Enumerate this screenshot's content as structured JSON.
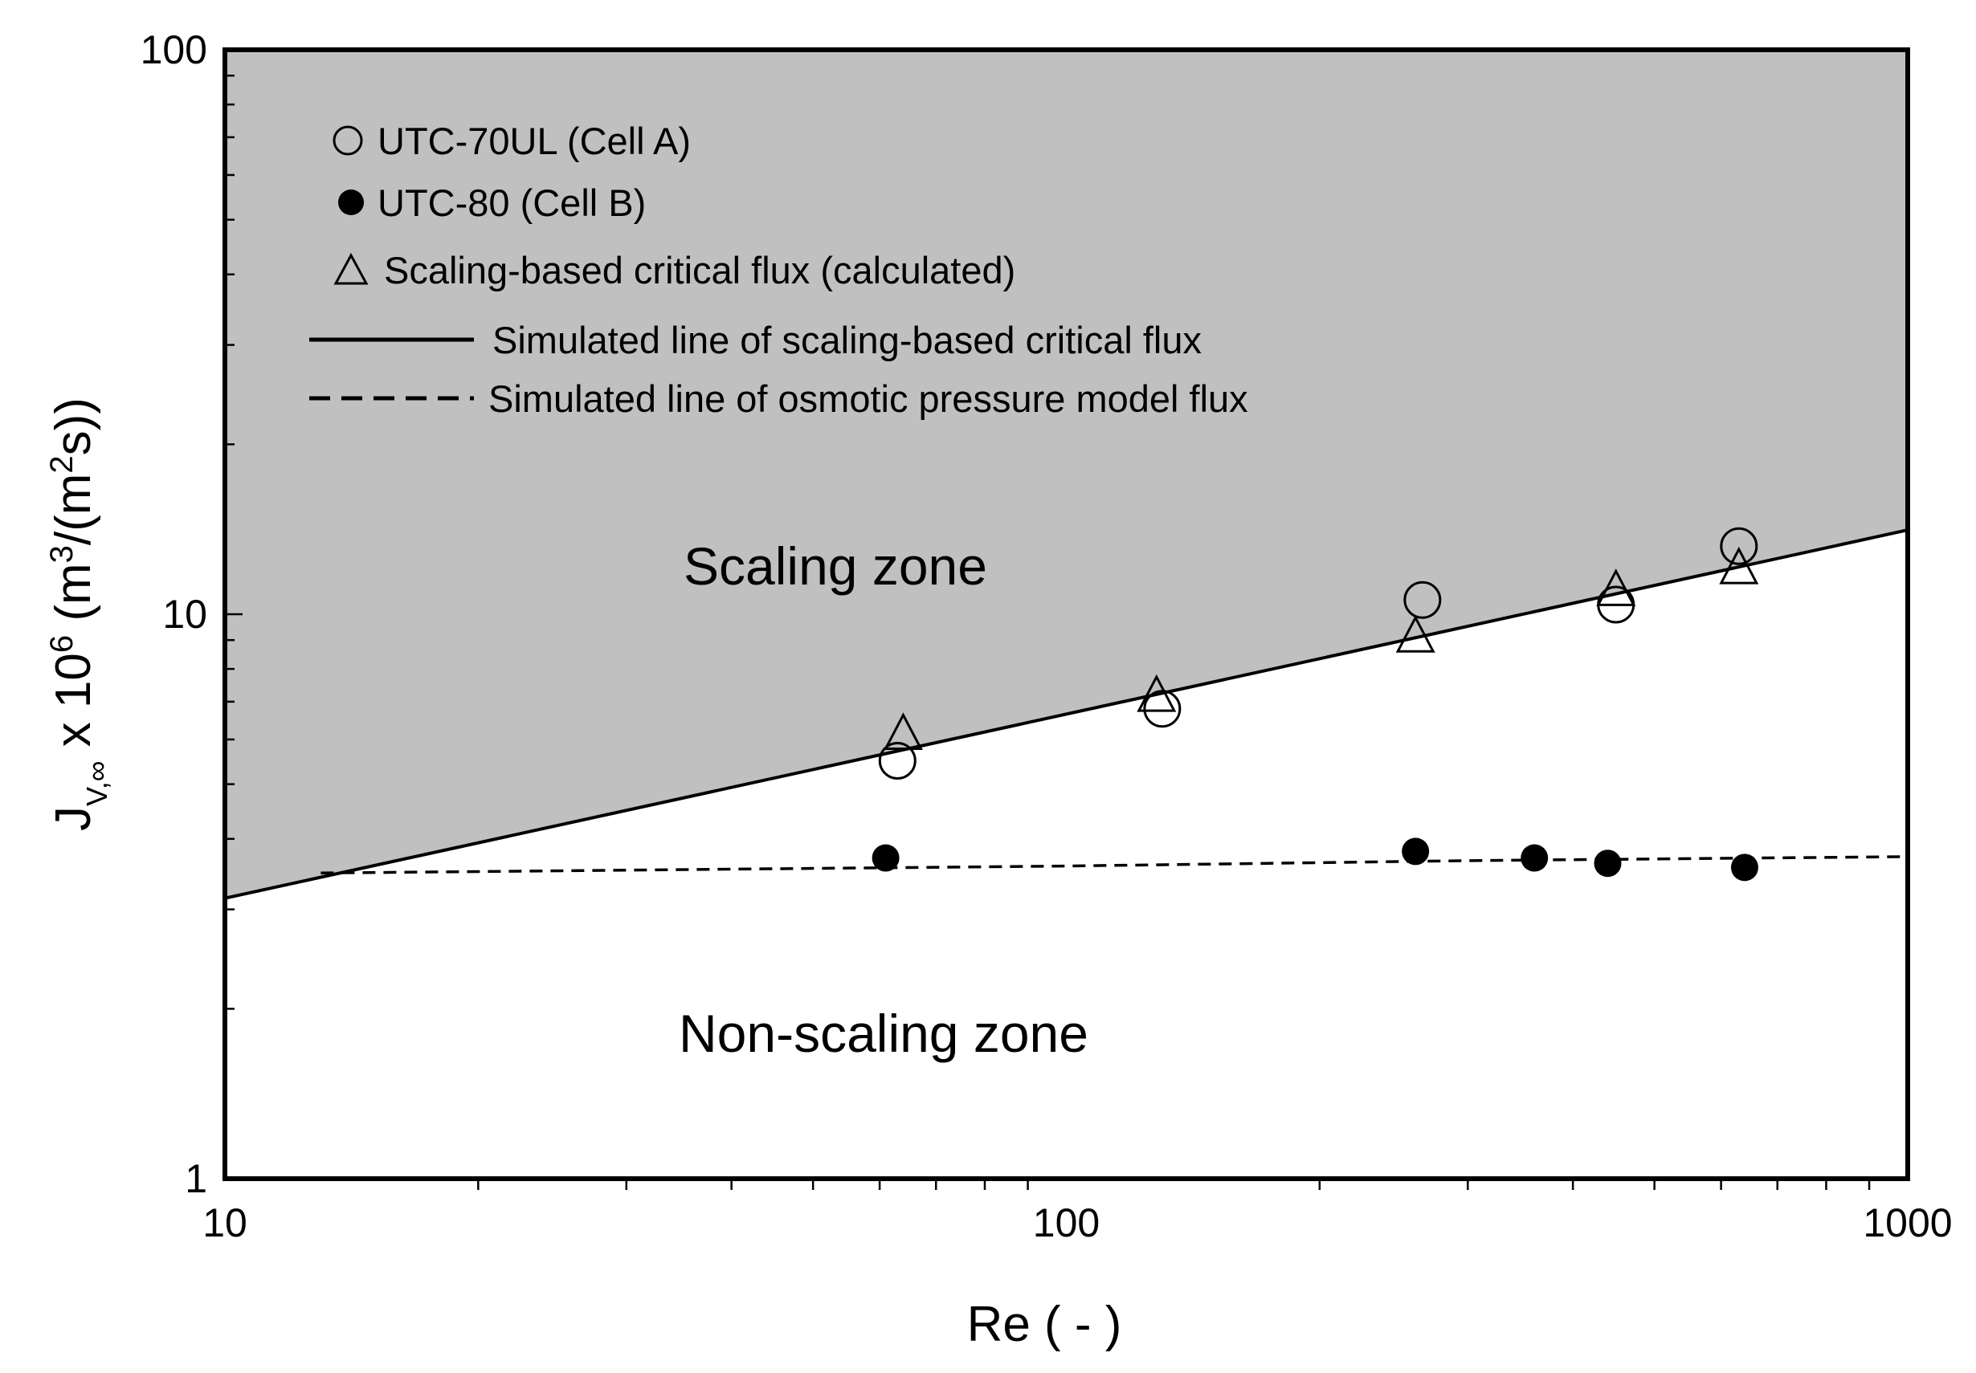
{
  "chart_data": {
    "type": "scatter",
    "title": "",
    "xlabel": "Re ( - )",
    "ylabel": {
      "base": "J",
      "sub": "V,∞",
      "mid": " x 10",
      "exp": "6",
      "unit_a": " (m",
      "unit_a_exp": "3",
      "unit_b": "/(m",
      "unit_b_exp": "2",
      "unit_c": "s))"
    },
    "x_scale": "log",
    "y_scale": "log",
    "xlim": [
      10,
      1000
    ],
    "ylim": [
      1,
      100
    ],
    "x_ticks": [
      "10",
      "100",
      "1000"
    ],
    "y_ticks": [
      "1",
      "10",
      "100"
    ],
    "grid": false,
    "legend_position": "top-left",
    "zones": [
      {
        "label": "Scaling zone",
        "color": "#c0c0c0"
      },
      {
        "label": "Non-scaling zone",
        "color": "#ffffff"
      }
    ],
    "series": [
      {
        "name": "UTC-70UL (Cell A)",
        "marker": "open-circle",
        "points": [
          [
            63,
            5.5
          ],
          [
            130,
            6.8
          ],
          [
            265,
            10.6
          ],
          [
            450,
            10.4
          ],
          [
            630,
            13.2
          ]
        ]
      },
      {
        "name": "UTC-80 (Cell B)",
        "marker": "filled-circle",
        "points": [
          [
            61,
            3.7
          ],
          [
            260,
            3.8
          ],
          [
            360,
            3.7
          ],
          [
            440,
            3.62
          ],
          [
            640,
            3.56
          ]
        ]
      },
      {
        "name": "Scaling-based critical flux (calculated)",
        "marker": "open-triangle",
        "points": [
          [
            64,
            5.95
          ],
          [
            128,
            6.95
          ],
          [
            260,
            8.85
          ],
          [
            450,
            10.7
          ],
          [
            630,
            11.7
          ]
        ]
      },
      {
        "name": "Simulated line of scaling-based critical flux",
        "line": "solid",
        "points": [
          [
            10,
            3.14
          ],
          [
            1000,
            14.1
          ]
        ]
      },
      {
        "name": "Simulated line of osmotic pressure model flux",
        "line": "dashed",
        "points": [
          [
            13,
            3.48
          ],
          [
            100,
            3.58
          ],
          [
            300,
            3.66
          ],
          [
            1000,
            3.72
          ]
        ]
      }
    ]
  }
}
